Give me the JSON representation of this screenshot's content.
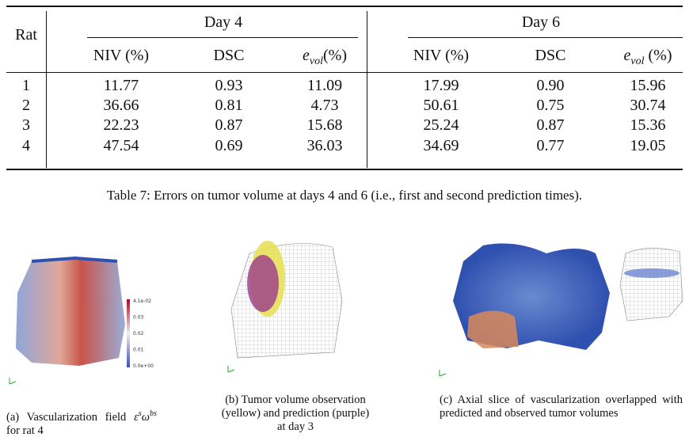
{
  "table": {
    "header": {
      "rat": "Rat",
      "groups": [
        "Day 4",
        "Day 6"
      ],
      "columns": [
        "NIV (%)",
        "DSC",
        {
          "base": "e",
          "sub": "vol",
          "suffix": "(%)"
        },
        "NIV (%)",
        "DSC",
        {
          "base": "e",
          "sub": "vol",
          "suffix": " (%)"
        }
      ]
    },
    "rows": [
      [
        "1",
        "11.77",
        "0.93",
        "11.09",
        "17.99",
        "0.90",
        "15.96"
      ],
      [
        "2",
        "36.66",
        "0.81",
        "4.73",
        "50.61",
        "0.75",
        "30.74"
      ],
      [
        "3",
        "22.23",
        "0.87",
        "15.68",
        "25.24",
        "0.87",
        "15.36"
      ],
      [
        "4",
        "47.54",
        "0.69",
        "36.03",
        "34.69",
        "0.77",
        "19.05"
      ]
    ],
    "caption": "Table 7: Errors on tumor volume at days 4 and 6 (i.e., first and second prediction times)."
  },
  "figures": [
    {
      "colorbar_labels": [
        "4.1e-02",
        "0.03",
        "0.02",
        "0.01",
        "0.0e+00"
      ],
      "caption": [
        {
          "text": "(a) Vascularization field "
        },
        {
          "text": "ε"
        },
        {
          "sup": "s"
        },
        {
          "text": "ω"
        },
        {
          "sup": "bs"
        },
        {
          "text": " for rat 4"
        }
      ]
    },
    {
      "caption": [
        {
          "text": "(b) Tumor volume observation (yellow) and prediction (purple) at day 3"
        }
      ]
    },
    {
      "caption": [
        {
          "text": "(c) Axial slice of vascularization overlapped with predicted and observed tumor volumes"
        }
      ]
    }
  ]
}
